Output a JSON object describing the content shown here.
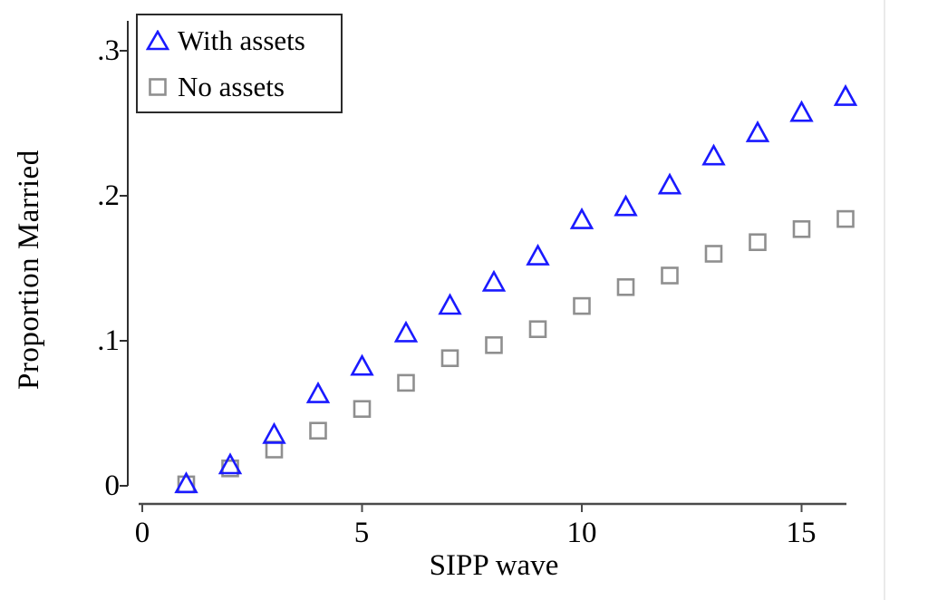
{
  "chart_data": {
    "type": "scatter",
    "title": "",
    "xlabel": "SIPP wave",
    "ylabel": "Proportion Married",
    "x": [
      1,
      2,
      3,
      4,
      5,
      6,
      7,
      8,
      9,
      10,
      11,
      12,
      13,
      14,
      15,
      16
    ],
    "series": [
      {
        "name": "With assets",
        "marker": "triangle",
        "color": "#1a1aff",
        "values": [
          0.002,
          0.015,
          0.036,
          0.064,
          0.083,
          0.106,
          0.125,
          0.141,
          0.159,
          0.184,
          0.193,
          0.208,
          0.228,
          0.244,
          0.258,
          0.269
        ]
      },
      {
        "name": "No assets",
        "marker": "square",
        "color": "#8f8f8f",
        "values": [
          0.001,
          0.012,
          0.025,
          0.038,
          0.053,
          0.071,
          0.088,
          0.097,
          0.108,
          0.124,
          0.137,
          0.145,
          0.16,
          0.168,
          0.177,
          0.184
        ]
      }
    ],
    "x_ticks": [
      {
        "value": 0,
        "label": "0"
      },
      {
        "value": 5,
        "label": "5"
      },
      {
        "value": 10,
        "label": "10"
      },
      {
        "value": 15,
        "label": "15"
      }
    ],
    "y_ticks": [
      {
        "value": 0,
        "label": "0"
      },
      {
        "value": 0.1,
        "label": ".1"
      },
      {
        "value": 0.2,
        "label": ".2"
      },
      {
        "value": 0.3,
        "label": ".3"
      }
    ],
    "xlim": [
      0,
      16
    ],
    "ylim": [
      0,
      0.32
    ],
    "grid": false,
    "legend_position": "top-left"
  },
  "colors": {
    "y_axis": "#2f2f2f",
    "x_axis": "#4a4a4a",
    "legend_border": "#2b2b2b",
    "page_edge_line": "#eaeaea"
  }
}
